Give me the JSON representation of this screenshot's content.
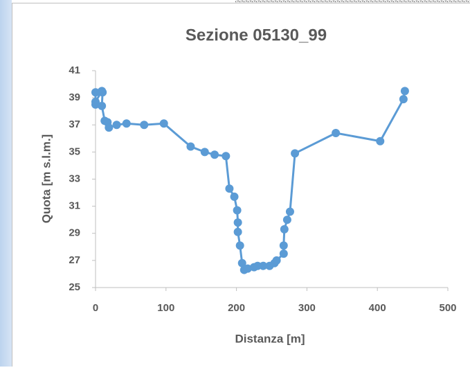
{
  "chart_data": {
    "type": "line",
    "title": "Sezione 05130_99",
    "x_label": "Distanza [m]",
    "y_label": "Quota [m s.l.m.]",
    "x": [
      0,
      0,
      0,
      9,
      10,
      9,
      13,
      17,
      19,
      30,
      44,
      69,
      97,
      135,
      155,
      169,
      185,
      190,
      197,
      201,
      202,
      202,
      205,
      208,
      211,
      216,
      225,
      230,
      238,
      247,
      254,
      257,
      267,
      267,
      268,
      272,
      276,
      283,
      341,
      404,
      437,
      439
    ],
    "values": [
      39.4,
      38.5,
      38.7,
      39.5,
      39.4,
      38.4,
      37.3,
      37.2,
      36.8,
      37.0,
      37.1,
      37.0,
      37.1,
      35.4,
      35.0,
      34.8,
      34.7,
      32.3,
      31.7,
      30.7,
      29.8,
      29.1,
      28.1,
      26.8,
      26.3,
      26.4,
      26.5,
      26.6,
      26.6,
      26.6,
      26.8,
      27.0,
      27.5,
      28.1,
      29.3,
      30.0,
      30.6,
      34.9,
      36.4,
      35.8,
      38.9,
      39.5
    ],
    "color": "#5b9bd5",
    "xlim": [
      0,
      500
    ],
    "xticks": [
      0,
      100,
      200,
      300,
      400,
      500
    ],
    "ylim": [
      25,
      41
    ],
    "yticks": [
      25,
      27,
      29,
      31,
      33,
      35,
      37,
      39,
      41
    ]
  }
}
